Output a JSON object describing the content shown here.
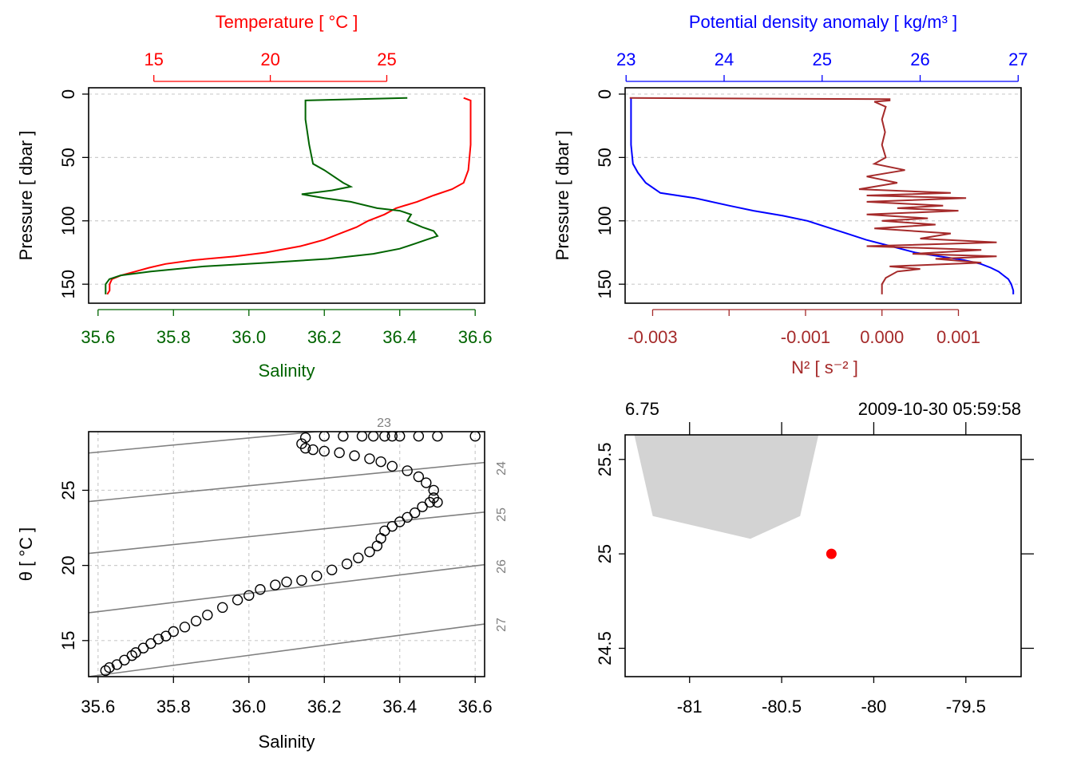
{
  "chart_data": [
    {
      "id": "profile_TS",
      "type": "line",
      "title": "",
      "top_axis": {
        "label": "Temperature [ °C ]",
        "color": "#FF0000",
        "ticks": [
          15,
          20,
          25
        ],
        "range": [
          12.2,
          29.2
        ]
      },
      "bottom_axis": {
        "label": "Salinity",
        "color": "#006400",
        "ticks": [
          "35.6",
          "35.8",
          "36.0",
          "36.2",
          "36.4",
          "36.6"
        ],
        "range": [
          35.575,
          36.625
        ]
      },
      "ylabel": "Pressure [ dbar ]",
      "yticks": [
        0,
        50,
        100,
        150
      ],
      "ylim": [
        165,
        -5
      ],
      "grid": true,
      "series": [
        {
          "name": "Temperature",
          "color": "#FF0000",
          "pressure": [
            3,
            5,
            20,
            40,
            60,
            70,
            75,
            80,
            85,
            90,
            95,
            100,
            105,
            110,
            115,
            120,
            125,
            128,
            131,
            134,
            137,
            140,
            143,
            146,
            150,
            155,
            158
          ],
          "values": [
            28.3,
            28.6,
            28.6,
            28.6,
            28.5,
            28.3,
            27.8,
            27.0,
            26.3,
            25.4,
            24.9,
            24.2,
            23.7,
            23.0,
            22.3,
            21.3,
            19.8,
            18.5,
            16.7,
            15.5,
            14.8,
            14.2,
            13.6,
            13.2,
            13.1,
            13.1,
            13.0
          ]
        },
        {
          "name": "Salinity",
          "color": "#006400",
          "pressure": [
            3,
            5,
            20,
            40,
            55,
            60,
            70,
            73,
            76,
            79,
            82,
            85,
            90,
            92,
            95,
            100,
            105,
            108,
            112,
            115,
            118,
            122,
            126,
            130,
            133,
            136,
            140,
            143,
            146,
            150,
            155,
            158
          ],
          "values": [
            36.42,
            36.15,
            36.15,
            36.16,
            36.17,
            36.2,
            36.25,
            36.27,
            36.22,
            36.14,
            36.2,
            36.27,
            36.34,
            36.4,
            36.43,
            36.42,
            36.46,
            36.49,
            36.5,
            36.47,
            36.44,
            36.4,
            36.33,
            36.21,
            36.05,
            35.88,
            35.74,
            35.66,
            35.63,
            35.62,
            35.62,
            35.62
          ]
        }
      ]
    },
    {
      "id": "profile_density_N2",
      "type": "line",
      "top_axis": {
        "label": "Potential density anomaly [ kg/m³ ]",
        "color": "#0000FF",
        "ticks": [
          23,
          24,
          25,
          26,
          27
        ],
        "range": [
          22.99,
          27.03
        ]
      },
      "bottom_axis": {
        "label": "N² [ s⁻² ]",
        "color": "#A52A2A",
        "ticks": [
          "-0.003",
          "",
          "-0.001",
          "0.000",
          "0.001"
        ],
        "tick_values": [
          -0.003,
          -0.002,
          -0.001,
          0.0,
          0.001
        ],
        "range": [
          -0.00336,
          0.00182
        ]
      },
      "ylabel": "Pressure [ dbar ]",
      "yticks": [
        0,
        50,
        100,
        150
      ],
      "ylim": [
        165,
        -5
      ],
      "grid": true,
      "series": [
        {
          "name": "Potential density anomaly",
          "color": "#0000FF",
          "pressure": [
            3,
            5,
            20,
            40,
            55,
            62,
            70,
            78,
            82,
            88,
            92,
            96,
            100,
            105,
            110,
            115,
            120,
            125,
            128,
            131,
            134,
            137,
            140,
            143,
            146,
            150,
            155,
            158
          ],
          "values": [
            23.05,
            23.05,
            23.05,
            23.05,
            23.07,
            23.12,
            23.2,
            23.35,
            23.7,
            24.05,
            24.3,
            24.6,
            24.85,
            25.05,
            25.25,
            25.45,
            25.7,
            25.95,
            26.2,
            26.45,
            26.62,
            26.72,
            26.8,
            26.85,
            26.9,
            26.93,
            26.95,
            26.95
          ]
        },
        {
          "name": "N2",
          "color": "#A52A2A",
          "pressure": [
            3,
            4,
            5,
            6,
            10,
            20,
            30,
            40,
            50,
            55,
            60,
            65,
            70,
            75,
            78,
            80,
            82,
            85,
            88,
            90,
            92,
            95,
            98,
            100,
            103,
            106,
            110,
            114,
            117,
            120,
            123,
            126,
            128,
            130,
            133,
            136,
            138,
            140,
            145,
            150,
            158
          ],
          "values": [
            -0.0033,
            0.0001,
            0.0001,
            -0.0001,
            5e-05,
            0.0,
            4e-05,
            0.0,
            5e-05,
            -0.0001,
            0.0003,
            -0.0002,
            0.0002,
            -0.0003,
            0.0009,
            -0.0002,
            0.0011,
            -0.0002,
            0.0008,
            0.0002,
            0.001,
            -0.0002,
            0.0006,
            0.0,
            0.0007,
            -0.0001,
            0.0009,
            0.0005,
            0.0015,
            -0.0002,
            0.0013,
            0.0004,
            0.0015,
            0.0007,
            0.0013,
            0.0001,
            0.0005,
            0.0002,
            5e-05,
            0.0,
            0.0
          ]
        }
      ]
    },
    {
      "id": "TS_diagram",
      "type": "scatter",
      "xlabel": "Salinity",
      "ylabel": "θ [ °C ]",
      "xticks": [
        "35.6",
        "35.8",
        "36.0",
        "36.2",
        "36.4",
        "36.6"
      ],
      "yticks": [
        15,
        20,
        25
      ],
      "xlim": [
        35.575,
        36.625
      ],
      "ylim": [
        12.6,
        28.9
      ],
      "grid": true,
      "isopycnals": [
        {
          "label": "23",
          "s": [
            35.575,
            36.625
          ],
          "t": [
            27.48,
            29.95
          ]
        },
        {
          "label": "24",
          "s": [
            35.575,
            36.625
          ],
          "t": [
            24.25,
            26.85
          ]
        },
        {
          "label": "25",
          "s": [
            35.575,
            36.625
          ],
          "t": [
            20.8,
            23.55
          ]
        },
        {
          "label": "26",
          "s": [
            35.575,
            36.625
          ],
          "t": [
            16.85,
            20.05
          ]
        },
        {
          "label": "27",
          "s": [
            35.575,
            36.625
          ],
          "t": [
            12.6,
            16.1
          ]
        }
      ],
      "points": {
        "salinity": [
          35.62,
          35.63,
          35.65,
          35.67,
          35.69,
          35.7,
          35.72,
          35.74,
          35.76,
          35.78,
          35.8,
          35.83,
          35.86,
          35.89,
          35.93,
          35.97,
          36.0,
          36.03,
          36.07,
          36.1,
          36.14,
          36.18,
          36.22,
          36.26,
          36.29,
          36.32,
          36.34,
          36.35,
          36.36,
          36.38,
          36.4,
          36.42,
          36.44,
          36.46,
          36.48,
          36.49,
          36.5,
          36.49,
          36.47,
          36.45,
          36.42,
          36.38,
          36.35,
          36.32,
          36.28,
          36.24,
          36.2,
          36.17,
          36.15,
          36.14,
          36.15,
          36.2,
          36.25,
          36.3,
          36.33,
          36.36,
          36.38,
          36.4,
          36.45,
          36.5,
          36.6
        ],
        "temperature": [
          13.0,
          13.2,
          13.4,
          13.7,
          14.0,
          14.2,
          14.5,
          14.8,
          15.1,
          15.3,
          15.6,
          15.9,
          16.3,
          16.7,
          17.2,
          17.7,
          18.0,
          18.4,
          18.7,
          18.9,
          19.0,
          19.3,
          19.7,
          20.1,
          20.5,
          20.9,
          21.3,
          21.8,
          22.3,
          22.6,
          22.9,
          23.2,
          23.5,
          23.9,
          24.2,
          24.5,
          24.2,
          25.0,
          25.5,
          25.9,
          26.3,
          26.6,
          26.9,
          27.1,
          27.3,
          27.5,
          27.6,
          27.7,
          27.8,
          28.1,
          28.5,
          28.6,
          28.6,
          28.6,
          28.6,
          28.6,
          28.6,
          28.6,
          28.6,
          28.6,
          28.6
        ]
      }
    },
    {
      "id": "map",
      "type": "map",
      "top_left_label": "6.75",
      "top_right_label": "2009-10-30 05:59:58",
      "xticks": [
        "-81",
        "-80.5",
        "-80",
        "-79.5"
      ],
      "yticks": [
        "24.5",
        "25",
        "25.5"
      ],
      "xlim": [
        -81.35,
        -79.2
      ],
      "ylim": [
        24.35,
        25.63
      ],
      "coastline": {
        "fill": "#D3D3D3",
        "lon": [
          -81.3,
          -80.3,
          -80.4,
          -80.67,
          -81.2
        ],
        "lat": [
          25.63,
          25.63,
          25.2,
          25.08,
          25.2
        ]
      },
      "station": {
        "lon": -80.23,
        "lat": 25.0,
        "color": "#FF0000"
      }
    }
  ]
}
